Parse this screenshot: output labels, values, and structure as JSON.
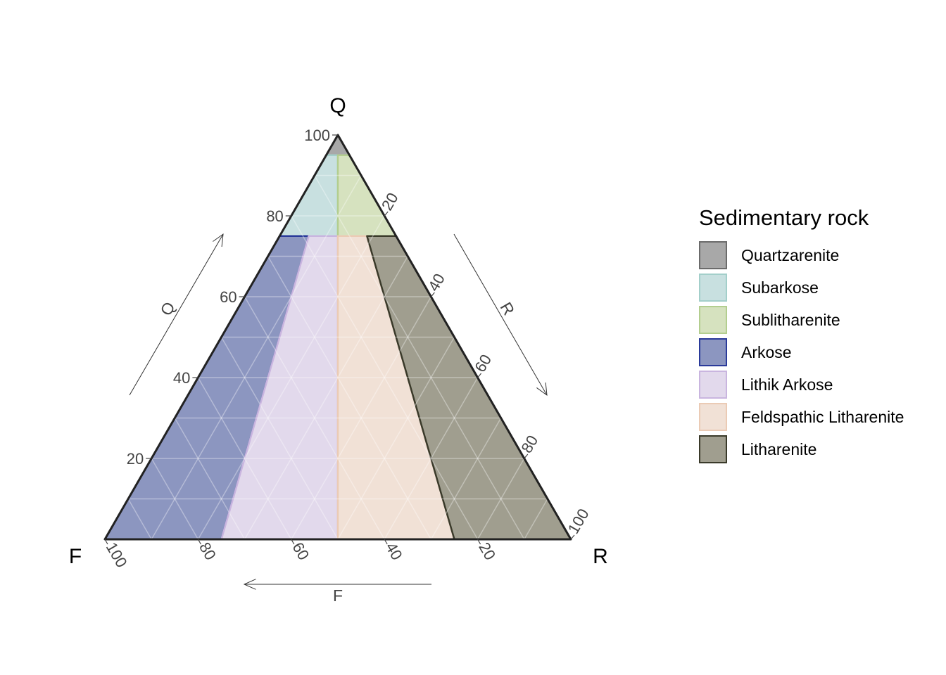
{
  "chart_data": {
    "type": "ternary",
    "axes": {
      "top": {
        "corner_label": "Q",
        "arrow_label": "Q"
      },
      "left": {
        "corner_label": "F",
        "arrow_label": "F"
      },
      "right": {
        "corner_label": "R",
        "arrow_label": "R"
      }
    },
    "ticks": {
      "Q": [
        "20",
        "40",
        "60",
        "80",
        "100"
      ],
      "F": [
        "20",
        "40",
        "60",
        "80",
        "100"
      ],
      "R": [
        "20",
        "40",
        "60",
        "80",
        "100"
      ]
    },
    "grid": true,
    "legend_position": "right",
    "legend_title": "Sedimentary rock",
    "regions": [
      {
        "name": "Quartzarenite",
        "fill": "#a8a8a8",
        "stroke": "#6b6b6b",
        "vertices": [
          {
            "Q": 100,
            "F": 0,
            "R": 0
          },
          {
            "Q": 95,
            "F": 5,
            "R": 0
          },
          {
            "Q": 95,
            "F": 0,
            "R": 5
          }
        ]
      },
      {
        "name": "Subarkose",
        "fill": "#c8e0e0",
        "stroke": "#a3cfca",
        "vertices": [
          {
            "Q": 95,
            "F": 5,
            "R": 0
          },
          {
            "Q": 95,
            "F": 2.5,
            "R": 2.5
          },
          {
            "Q": 75,
            "F": 12.5,
            "R": 12.5
          },
          {
            "Q": 75,
            "F": 25,
            "R": 0
          }
        ]
      },
      {
        "name": "Sublitharenite",
        "fill": "#d6e2bf",
        "stroke": "#b3ce8f",
        "vertices": [
          {
            "Q": 95,
            "F": 2.5,
            "R": 2.5
          },
          {
            "Q": 95,
            "F": 0,
            "R": 5
          },
          {
            "Q": 75,
            "F": 0,
            "R": 25
          },
          {
            "Q": 75,
            "F": 12.5,
            "R": 12.5
          }
        ]
      },
      {
        "name": "Arkose",
        "fill": "#8c96c0",
        "stroke": "#2a3a9a",
        "vertices": [
          {
            "Q": 75,
            "F": 25,
            "R": 0
          },
          {
            "Q": 75,
            "F": 18.75,
            "R": 6.25
          },
          {
            "Q": 0,
            "F": 75,
            "R": 25
          },
          {
            "Q": 0,
            "F": 100,
            "R": 0
          }
        ]
      },
      {
        "name": "Lithik Arkose",
        "fill": "#e2d9ec",
        "stroke": "#c9b5df",
        "vertices": [
          {
            "Q": 75,
            "F": 18.75,
            "R": 6.25
          },
          {
            "Q": 75,
            "F": 12.5,
            "R": 12.5
          },
          {
            "Q": 0,
            "F": 50,
            "R": 50
          },
          {
            "Q": 0,
            "F": 75,
            "R": 25
          }
        ]
      },
      {
        "name": "Feldspathic Litharenite",
        "fill": "#f1e1d6",
        "stroke": "#ebcbb5",
        "vertices": [
          {
            "Q": 75,
            "F": 12.5,
            "R": 12.5
          },
          {
            "Q": 75,
            "F": 6.25,
            "R": 18.75
          },
          {
            "Q": 0,
            "F": 25,
            "R": 75
          },
          {
            "Q": 0,
            "F": 50,
            "R": 50
          }
        ]
      },
      {
        "name": "Litharenite",
        "fill": "#a09e8f",
        "stroke": "#3a3a2a",
        "vertices": [
          {
            "Q": 75,
            "F": 6.25,
            "R": 18.75
          },
          {
            "Q": 75,
            "F": 0,
            "R": 25
          },
          {
            "Q": 0,
            "F": 0,
            "R": 100
          },
          {
            "Q": 0,
            "F": 25,
            "R": 75
          }
        ]
      }
    ]
  }
}
